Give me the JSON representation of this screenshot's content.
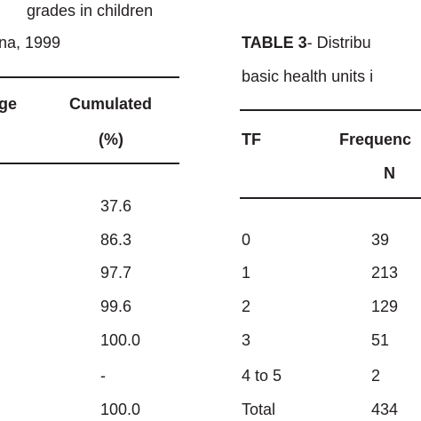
{
  "left_table": {
    "caption": [
      "grades in children",
      "na, 1999"
    ],
    "header": [
      "ge",
      "Cumulated",
      "(%)"
    ],
    "rows": [
      "37.6",
      "86.3",
      "97.7",
      "99.6",
      "100.0",
      "-",
      "100.0"
    ]
  },
  "right_table": {
    "caption": {
      "label": "TABLE 3",
      "text": "- Distribu",
      "line2": "basic health units i"
    },
    "header": [
      "TF",
      "Frequenc",
      "N"
    ],
    "rows": [
      [
        "0",
        "39"
      ],
      [
        "1",
        "213"
      ],
      [
        "2",
        "129"
      ],
      [
        "3",
        "51"
      ],
      [
        "4 to 5",
        "2"
      ],
      [
        "Total",
        "434"
      ]
    ]
  }
}
